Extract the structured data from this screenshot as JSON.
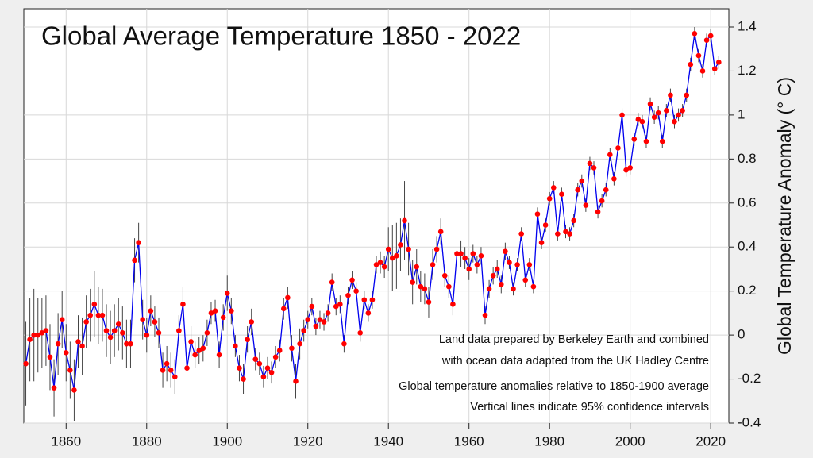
{
  "chart_data": {
    "type": "line",
    "title": "Global Average Temperature 1850 - 2022",
    "y_label": "Global Temperature Anomaly (° C)",
    "annotations": [
      "Land data prepared by Berkeley Earth and combined",
      "with ocean data adapted from the UK Hadley Centre",
      "Global temperature anomalies relative to 1850-1900 average",
      "Vertical lines indicate 95% confidence intervals"
    ],
    "color": "#0000ee",
    "marker_color": "#ff0000",
    "error_color": "#444444",
    "grid": true,
    "xlim": [
      1849.5,
      2024.5
    ],
    "xticks": [
      1860,
      1880,
      1900,
      1920,
      1940,
      1960,
      1980,
      2000,
      2020
    ],
    "ylim": [
      -0.4,
      1.483
    ],
    "yticks": [
      -0.4,
      -0.2,
      0,
      0.2,
      0.4,
      0.6,
      0.8,
      1,
      1.2,
      1.4
    ],
    "x": [
      1850,
      1851,
      1852,
      1853,
      1854,
      1855,
      1856,
      1857,
      1858,
      1859,
      1860,
      1861,
      1862,
      1863,
      1864,
      1865,
      1866,
      1867,
      1868,
      1869,
      1870,
      1871,
      1872,
      1873,
      1874,
      1875,
      1876,
      1877,
      1878,
      1879,
      1880,
      1881,
      1882,
      1883,
      1884,
      1885,
      1886,
      1887,
      1888,
      1889,
      1890,
      1891,
      1892,
      1893,
      1894,
      1895,
      1896,
      1897,
      1898,
      1899,
      1900,
      1901,
      1902,
      1903,
      1904,
      1905,
      1906,
      1907,
      1908,
      1909,
      1910,
      1911,
      1912,
      1913,
      1914,
      1915,
      1916,
      1917,
      1918,
      1919,
      1920,
      1921,
      1922,
      1923,
      1924,
      1925,
      1926,
      1927,
      1928,
      1929,
      1930,
      1931,
      1932,
      1933,
      1934,
      1935,
      1936,
      1937,
      1938,
      1939,
      1940,
      1941,
      1942,
      1943,
      1944,
      1945,
      1946,
      1947,
      1948,
      1949,
      1950,
      1951,
      1952,
      1953,
      1954,
      1955,
      1956,
      1957,
      1958,
      1959,
      1960,
      1961,
      1962,
      1963,
      1964,
      1965,
      1966,
      1967,
      1968,
      1969,
      1970,
      1971,
      1972,
      1973,
      1974,
      1975,
      1976,
      1977,
      1978,
      1979,
      1980,
      1981,
      1982,
      1983,
      1984,
      1985,
      1986,
      1987,
      1988,
      1989,
      1990,
      1991,
      1992,
      1993,
      1994,
      1995,
      1996,
      1997,
      1998,
      1999,
      2000,
      2001,
      2002,
      2003,
      2004,
      2005,
      2006,
      2007,
      2008,
      2009,
      2010,
      2011,
      2012,
      2013,
      2014,
      2015,
      2016,
      2017,
      2018,
      2019,
      2020,
      2021,
      2022
    ],
    "values": [
      -0.13,
      -0.02,
      0.0,
      0.0,
      0.01,
      0.02,
      -0.1,
      -0.24,
      -0.04,
      0.07,
      -0.08,
      -0.16,
      -0.25,
      -0.03,
      -0.05,
      0.06,
      0.09,
      0.14,
      0.09,
      0.09,
      0.02,
      -0.01,
      0.02,
      0.05,
      0.01,
      -0.04,
      -0.04,
      0.34,
      0.42,
      0.07,
      0.0,
      0.11,
      0.06,
      0.01,
      -0.16,
      -0.13,
      -0.16,
      -0.19,
      0.02,
      0.14,
      -0.15,
      -0.03,
      -0.09,
      -0.07,
      -0.06,
      0.01,
      0.1,
      0.11,
      -0.09,
      0.08,
      0.19,
      0.11,
      -0.05,
      -0.15,
      -0.2,
      -0.02,
      0.06,
      -0.11,
      -0.13,
      -0.19,
      -0.15,
      -0.17,
      -0.1,
      -0.07,
      0.12,
      0.17,
      -0.06,
      -0.21,
      -0.04,
      0.02,
      0.07,
      0.13,
      0.04,
      0.07,
      0.06,
      0.1,
      0.24,
      0.13,
      0.14,
      -0.04,
      0.18,
      0.25,
      0.2,
      0.01,
      0.16,
      0.1,
      0.16,
      0.32,
      0.33,
      0.31,
      0.39,
      0.35,
      0.36,
      0.41,
      0.52,
      0.39,
      0.24,
      0.31,
      0.22,
      0.21,
      0.15,
      0.32,
      0.39,
      0.47,
      0.27,
      0.22,
      0.14,
      0.37,
      0.37,
      0.35,
      0.3,
      0.37,
      0.32,
      0.36,
      0.09,
      0.21,
      0.27,
      0.3,
      0.23,
      0.38,
      0.33,
      0.21,
      0.32,
      0.46,
      0.25,
      0.32,
      0.22,
      0.55,
      0.42,
      0.5,
      0.62,
      0.67,
      0.46,
      0.64,
      0.47,
      0.46,
      0.52,
      0.66,
      0.7,
      0.59,
      0.78,
      0.76,
      0.56,
      0.61,
      0.66,
      0.82,
      0.71,
      0.85,
      1.0,
      0.75,
      0.76,
      0.89,
      0.98,
      0.97,
      0.88,
      1.05,
      0.99,
      1.01,
      0.88,
      1.02,
      1.09,
      0.97,
      1.0,
      1.02,
      1.09,
      1.23,
      1.37,
      1.27,
      1.2,
      1.34,
      1.36,
      1.21,
      1.24
    ],
    "errors": [
      0.19,
      0.19,
      0.21,
      0.17,
      0.16,
      0.16,
      0.15,
      0.13,
      0.14,
      0.13,
      0.13,
      0.13,
      0.14,
      0.12,
      0.13,
      0.12,
      0.12,
      0.15,
      0.13,
      0.12,
      0.12,
      0.12,
      0.12,
      0.12,
      0.12,
      0.11,
      0.11,
      0.1,
      0.09,
      0.09,
      0.08,
      0.07,
      0.07,
      0.07,
      0.08,
      0.08,
      0.08,
      0.08,
      0.07,
      0.08,
      0.08,
      0.07,
      0.06,
      0.06,
      0.06,
      0.06,
      0.05,
      0.05,
      0.06,
      0.06,
      0.08,
      0.06,
      0.05,
      0.06,
      0.07,
      0.06,
      0.06,
      0.05,
      0.05,
      0.05,
      0.05,
      0.05,
      0.05,
      0.05,
      0.05,
      0.05,
      0.06,
      0.08,
      0.07,
      0.05,
      0.04,
      0.04,
      0.04,
      0.04,
      0.04,
      0.04,
      0.04,
      0.04,
      0.04,
      0.04,
      0.04,
      0.04,
      0.04,
      0.04,
      0.04,
      0.04,
      0.04,
      0.04,
      0.05,
      0.05,
      0.1,
      0.15,
      0.15,
      0.12,
      0.18,
      0.12,
      0.1,
      0.08,
      0.07,
      0.07,
      0.07,
      0.07,
      0.06,
      0.06,
      0.05,
      0.05,
      0.05,
      0.06,
      0.06,
      0.05,
      0.05,
      0.04,
      0.04,
      0.04,
      0.04,
      0.04,
      0.04,
      0.04,
      0.04,
      0.04,
      0.03,
      0.03,
      0.03,
      0.03,
      0.03,
      0.03,
      0.03,
      0.03,
      0.03,
      0.03,
      0.03,
      0.03,
      0.03,
      0.03,
      0.03,
      0.03,
      0.03,
      0.03,
      0.03,
      0.03,
      0.03,
      0.03,
      0.03,
      0.03,
      0.03,
      0.03,
      0.03,
      0.03,
      0.03,
      0.03,
      0.03,
      0.03,
      0.03,
      0.03,
      0.03,
      0.03,
      0.03,
      0.03,
      0.03,
      0.03,
      0.03,
      0.03,
      0.03,
      0.03,
      0.03,
      0.03,
      0.03,
      0.03,
      0.03,
      0.03,
      0.03,
      0.03,
      0.03
    ]
  }
}
